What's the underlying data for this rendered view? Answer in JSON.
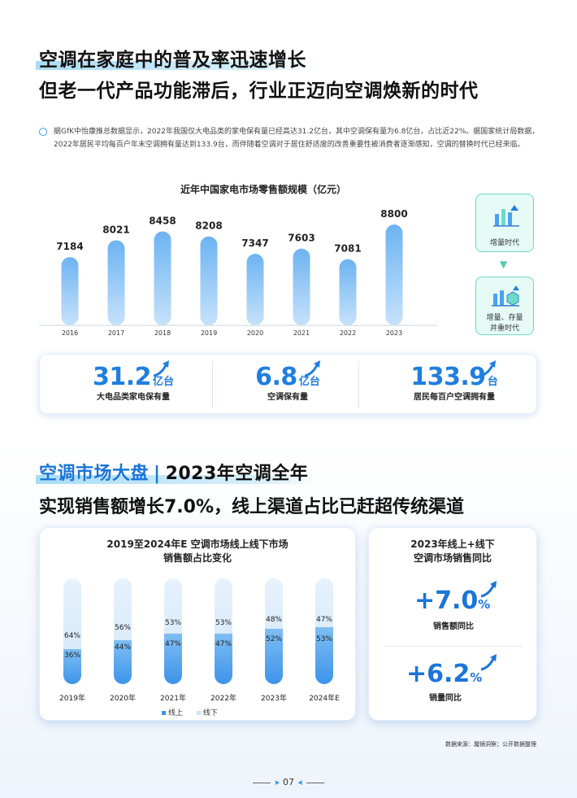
{
  "header": {
    "line1": "空调在家庭中的普及率迅速增长",
    "line2": "但老一代产品功能滞后，行业正迈向空调焕新的时代"
  },
  "intro": "据GfK中怡康推总数据显示，2022年我国仅大电品类的家电保有量已经高达31.2亿台，其中空调保有量为6.8亿台，占比近22%。据国家统计局数据，2022年居民平均每百户年末空调拥有量达到133.9台，而伴随着空调对于居住舒适度的改善重要性被消费者逐渐感知，空调的替换时代已经来临。",
  "chart_data": [
    {
      "type": "bar",
      "title": "近年中国家电市场零售额规模（亿元）",
      "categories": [
        "2016",
        "2017",
        "2018",
        "2019",
        "2020",
        "2021",
        "2022",
        "2023"
      ],
      "values": [
        7184,
        8021,
        8458,
        8208,
        7347,
        7603,
        7081,
        8800
      ],
      "colors": {
        "bar_top": "#9fd0f7",
        "bar_bottom": "#3d94ea"
      }
    },
    {
      "type": "bar",
      "title": "2019至2024年E 空调市场线上线下市场\n销售额占比变化",
      "categories": [
        "2019年",
        "2020年",
        "2021年",
        "2022年",
        "2023年",
        "2024年E"
      ],
      "series": [
        {
          "name": "线上",
          "values": [
            36,
            44,
            47,
            47,
            52,
            53
          ]
        },
        {
          "name": "线下",
          "values": [
            64,
            56,
            53,
            53,
            48,
            47
          ]
        }
      ],
      "unit": "%",
      "stacked": true,
      "legend_position": "bottom"
    }
  ],
  "eras": {
    "era1": "增量时代",
    "era2_l1": "增量、存量",
    "era2_l2": "并重时代",
    "accent": "#6fd9c7"
  },
  "stats": [
    {
      "value": "31.2",
      "unit": "亿台",
      "label": "大电品类家电保有量"
    },
    {
      "value": "6.8",
      "unit": "亿台",
      "label": "空调保有量"
    },
    {
      "value": "133.9",
      "unit": "台",
      "label": "居民每百户空调拥有量"
    }
  ],
  "section2": {
    "title_blue": "空调市场大盘",
    "separator": "|",
    "title_rest": "2023年空调全年",
    "subtitle": "实现销售额增长7.0%，线上渠道占比已赶超传统渠道"
  },
  "left_card": {
    "title_l1": "2019至2024年E 空调市场线上线下市场",
    "title_l2": "销售额占比变化",
    "col1": {
      "year": "2019年",
      "top": "64%",
      "bot": "36%"
    },
    "col2": {
      "year": "2020年",
      "top": "56%",
      "bot": "44%"
    },
    "col3": {
      "year": "2021年",
      "top": "53%",
      "bot": "47%"
    },
    "col4": {
      "year": "2022年",
      "top": "53%",
      "bot": "47%"
    },
    "col5": {
      "year": "2023年",
      "top": "48%",
      "bot": "52%"
    },
    "col6": {
      "year": "2024年E",
      "top": "47%",
      "bot": "53%"
    },
    "legend_online": "线上",
    "legend_offline": "线下"
  },
  "right_card": {
    "title_l1": "2023年线上+线下",
    "title_l2": "空调市场销售同比",
    "m1": {
      "num": "+7.0",
      "sym": "%",
      "label": "销售额同比"
    },
    "m2": {
      "num": "+6.2",
      "sym": "%",
      "label": "销量同比"
    }
  },
  "footer": {
    "source": "数据来源：魔镜洞察；公开数据整理",
    "page": "07"
  },
  "colors": {
    "accent": "#1b74d8",
    "stat_blue": "#1f7ee0"
  }
}
